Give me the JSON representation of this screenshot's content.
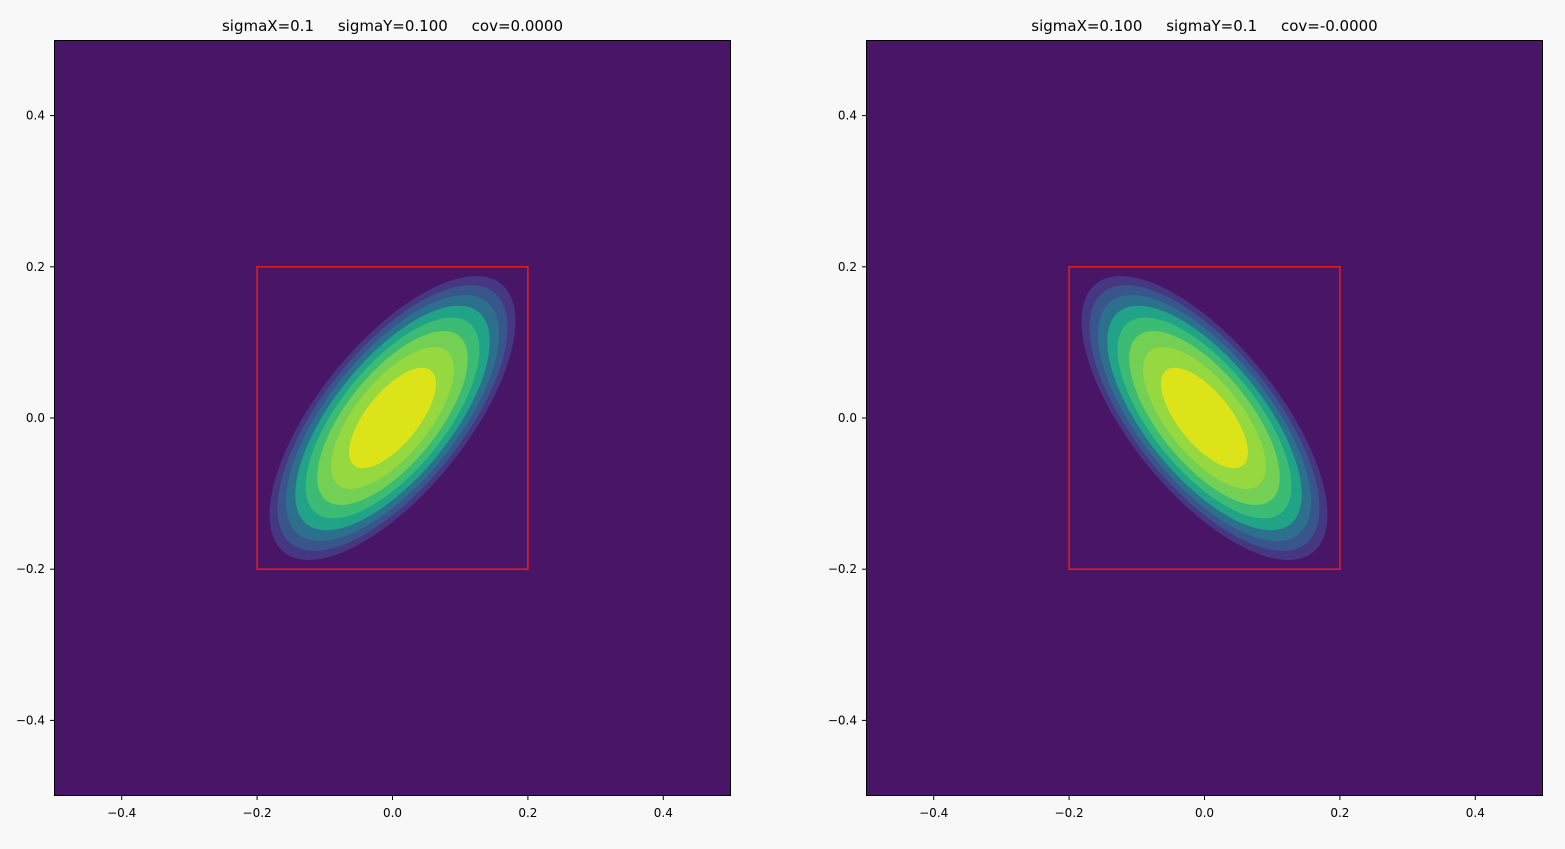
{
  "chart_data": [
    {
      "type": "contour",
      "title": "sigmaX=0.1     sigmaY=0.100     cov=0.0000",
      "xlim": [
        -0.5,
        0.5
      ],
      "ylim": [
        -0.5,
        0.5
      ],
      "xticks": [
        -0.4,
        -0.2,
        0.0,
        0.2,
        0.4
      ],
      "xtick_labels": [
        "−0.4",
        "−0.2",
        "0.0",
        "0.2",
        "0.4"
      ],
      "yticks": [
        -0.4,
        -0.2,
        0.0,
        0.2,
        0.4
      ],
      "ytick_labels": [
        "−0.4",
        "−0.2",
        "0.0",
        "0.2",
        "0.4"
      ],
      "gaussian": {
        "mean": [
          0.0,
          0.0
        ],
        "orientation": "positive correlation (tilted up-right)"
      },
      "contour_levels": 8,
      "colormap": "viridis",
      "box": {
        "x": [
          -0.2,
          0.2
        ],
        "y": [
          -0.2,
          0.2
        ],
        "color": "#e31a1c"
      },
      "grid": false
    },
    {
      "type": "contour",
      "title": "sigmaX=0.100     sigmaY=0.1     cov=-0.0000",
      "xlim": [
        -0.5,
        0.5
      ],
      "ylim": [
        -0.5,
        0.5
      ],
      "xticks": [
        -0.4,
        -0.2,
        0.0,
        0.2,
        0.4
      ],
      "xtick_labels": [
        "−0.4",
        "−0.2",
        "0.0",
        "0.2",
        "0.4"
      ],
      "yticks": [
        -0.4,
        -0.2,
        0.0,
        0.2,
        0.4
      ],
      "ytick_labels": [
        "−0.4",
        "−0.2",
        "0.0",
        "0.2",
        "0.4"
      ],
      "gaussian": {
        "mean": [
          0.0,
          0.0
        ],
        "orientation": "negative correlation (tilted down-right)"
      },
      "contour_levels": 8,
      "colormap": "viridis",
      "box": {
        "x": [
          -0.2,
          0.2
        ],
        "y": [
          -0.2,
          0.2
        ],
        "color": "#e31a1c"
      },
      "grid": false
    }
  ],
  "colors": {
    "levels": [
      "#481567",
      "#453781",
      "#39568c",
      "#2d708e",
      "#20a387",
      "#3cbb75",
      "#73d055",
      "#95d840",
      "#dce319"
    ],
    "box": "#e31a1c",
    "figure_bg": "#f8f8f8"
  }
}
